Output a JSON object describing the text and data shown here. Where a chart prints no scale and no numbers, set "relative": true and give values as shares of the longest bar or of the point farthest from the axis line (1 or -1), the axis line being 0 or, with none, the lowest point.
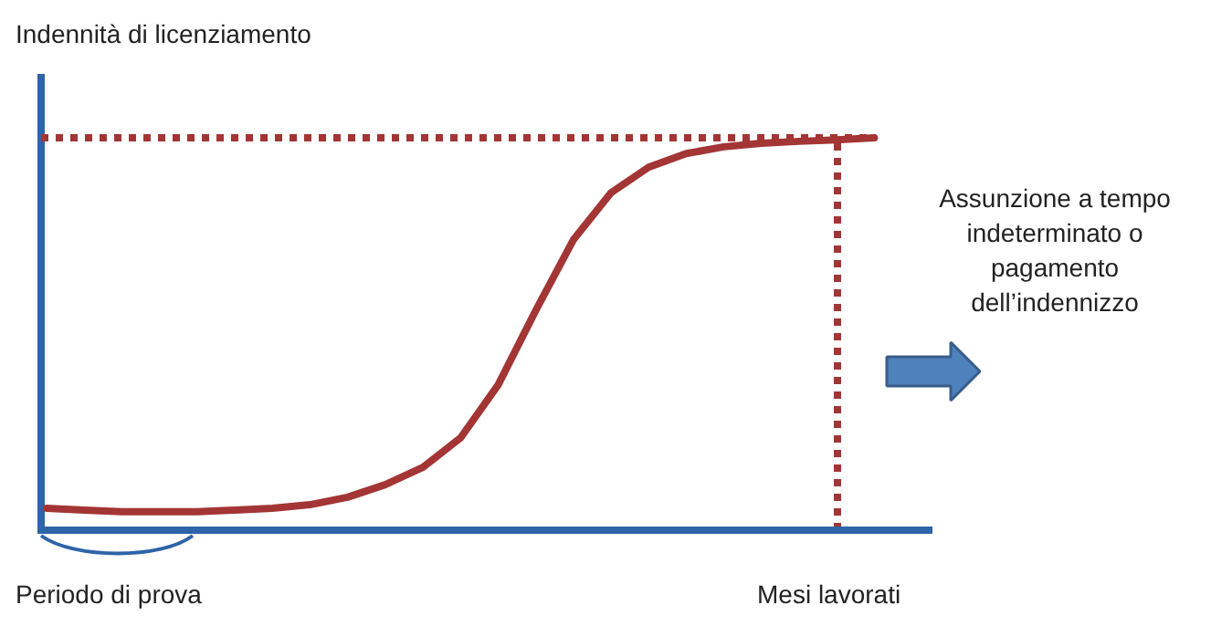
{
  "chart_data": {
    "type": "line",
    "relative": true,
    "ylabel": "Indennità di licenziamento",
    "xlabel": "Mesi lavorati",
    "categories": [
      null,
      null,
      null,
      null,
      null,
      null,
      null,
      null,
      null,
      null,
      null,
      null,
      null,
      null,
      null,
      null,
      null,
      null,
      null,
      null,
      null,
      null,
      null
    ],
    "series": [
      {
        "color": "#a33535",
        "values": [
          0.056,
          0.051,
          0.047,
          0.047,
          0.047,
          0.051,
          0.056,
          0.065,
          0.084,
          0.116,
          0.16,
          0.235,
          0.37,
          0.56,
          0.74,
          0.86,
          0.925,
          0.96,
          0.977,
          0.986,
          0.991,
          0.995,
          1.0
        ]
      }
    ],
    "ref_lines": [
      {
        "axis": "y",
        "value": 1,
        "color": "#a33535",
        "line_style": "dotted"
      }
    ],
    "annotations": [
      "Periodo di prova",
      "Assunzione a tempo\nindeterminato o\npagamento\ndell’indennizzo"
    ]
  }
}
